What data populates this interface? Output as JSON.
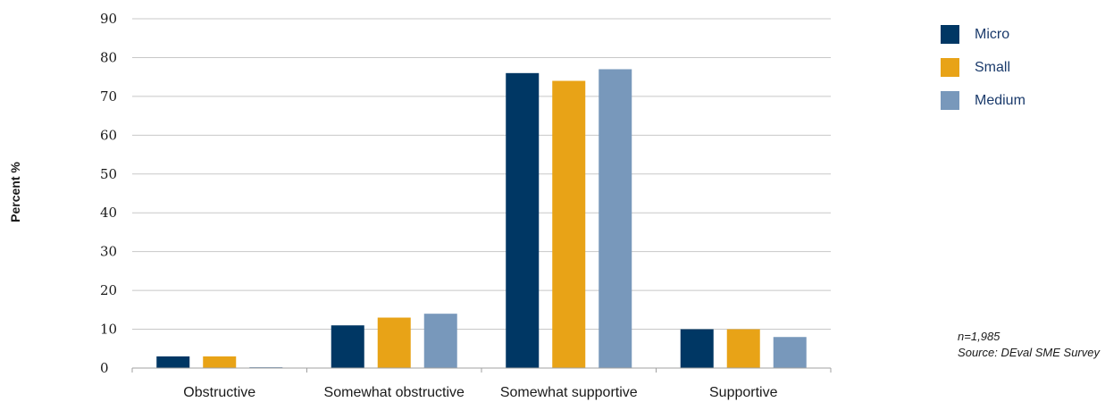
{
  "chart_data": {
    "type": "bar",
    "categories": [
      "Obstructive",
      "Somewhat obstructive",
      "Somewhat supportive",
      "Supportive"
    ],
    "series": [
      {
        "name": "Micro",
        "color": "#003764",
        "values": [
          3,
          11,
          76,
          10
        ]
      },
      {
        "name": "Small",
        "color": "#e8a317",
        "values": [
          3,
          13,
          74,
          10
        ]
      },
      {
        "name": "Medium",
        "color": "#7898bb",
        "values": [
          0,
          14,
          77,
          8
        ]
      }
    ],
    "ylabel": "Percent %",
    "ylim": [
      0,
      90
    ],
    "yticks": [
      0,
      10,
      20,
      30,
      40,
      50,
      60,
      70,
      80,
      90
    ],
    "grid": true,
    "legend_position": "top-right"
  },
  "notes": {
    "sample": "n=1,985",
    "source": "Source: DEval SME Survey"
  }
}
